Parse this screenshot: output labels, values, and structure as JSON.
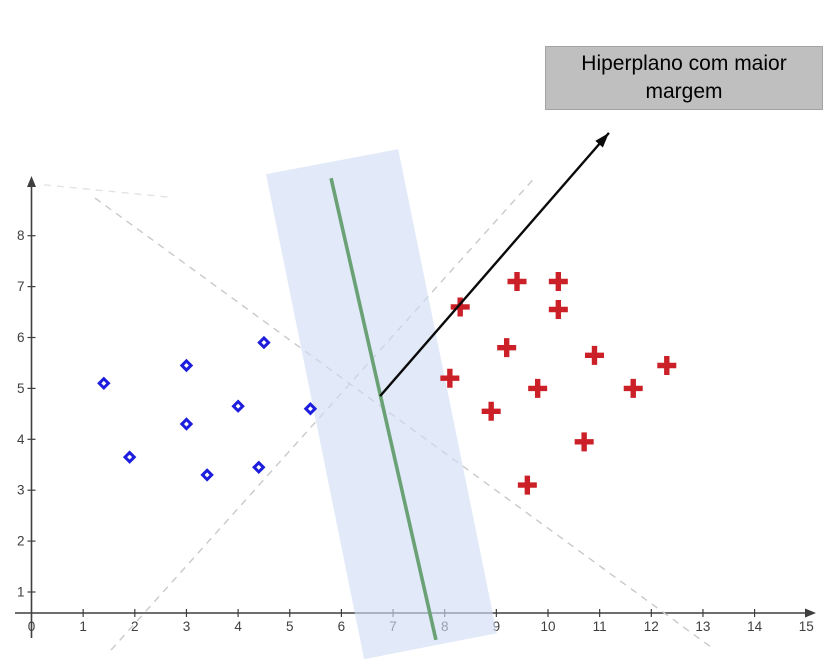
{
  "annotation_box": {
    "text": "Hiperplano com maior margem",
    "bg_color": "#bfbfbf",
    "text_color": "#000000"
  },
  "chart_data": {
    "type": "scatter",
    "title": "",
    "xlabel": "",
    "ylabel": "",
    "grid": false,
    "legend": "none",
    "xlim": [
      0,
      15.2
    ],
    "ylim": [
      0,
      9.3
    ],
    "x_ticks": [
      0,
      1,
      2,
      3,
      4,
      5,
      6,
      7,
      8,
      9,
      10,
      11,
      12,
      13,
      14,
      15
    ],
    "y_ticks": [
      1,
      2,
      3,
      4,
      5,
      6,
      7,
      8
    ],
    "series": [
      {
        "name": "classe-negativa-diamantes",
        "marker": "diamond-open",
        "color": "#1d1ddd",
        "points": [
          [
            1.4,
            5.1
          ],
          [
            1.9,
            3.65
          ],
          [
            3.0,
            5.45
          ],
          [
            3.0,
            4.3
          ],
          [
            3.4,
            3.3
          ],
          [
            4.0,
            4.65
          ],
          [
            4.4,
            3.45
          ],
          [
            4.5,
            5.9
          ],
          [
            5.4,
            4.6
          ]
        ]
      },
      {
        "name": "classe-positiva-cruzes",
        "marker": "plus",
        "color": "#cb2027",
        "points": [
          [
            8.1,
            5.2
          ],
          [
            8.3,
            6.6
          ],
          [
            8.9,
            4.55
          ],
          [
            9.2,
            5.8
          ],
          [
            9.4,
            7.1
          ],
          [
            9.6,
            3.1
          ],
          [
            9.8,
            5.0
          ],
          [
            10.2,
            7.1
          ],
          [
            10.2,
            6.55
          ],
          [
            10.7,
            3.95
          ],
          [
            10.9,
            5.65
          ],
          [
            11.65,
            5.0
          ],
          [
            12.3,
            5.45
          ]
        ]
      }
    ],
    "hyperplane": {
      "name": "hiperplano-otimo",
      "color": "#6aa276",
      "from": [
        5.8,
        9.13
      ],
      "to": [
        7.83,
        0.06
      ]
    },
    "margin_band": {
      "name": "margem-maxima",
      "fill": "rgba(208,221,246,0.62)",
      "polygon": [
        [
          4.54,
          9.21
        ],
        [
          7.1,
          9.7
        ],
        [
          9.01,
          0.19
        ],
        [
          6.44,
          -0.32
        ]
      ]
    },
    "candidate_lines": [
      {
        "from": [
          1.23,
          8.74
        ],
        "to": [
          13.18,
          -0.1
        ],
        "faint": false
      },
      {
        "from": [
          1.54,
          -0.14
        ],
        "to": [
          9.77,
          9.17
        ],
        "faint": false
      },
      {
        "from": [
          0.24,
          9.0
        ],
        "to": [
          2.64,
          8.76
        ],
        "faint": true
      }
    ],
    "arrow": {
      "from": [
        6.75,
        4.85
      ],
      "to": [
        11.18,
        10.02
      ],
      "color": "#0a0a0a"
    }
  },
  "colors": {
    "axis": "#3f3f3f",
    "tick_label": "#3f3f3f",
    "dashed_line": "#c9c9c9",
    "dashed_line_faint": "#e3e3e3"
  }
}
